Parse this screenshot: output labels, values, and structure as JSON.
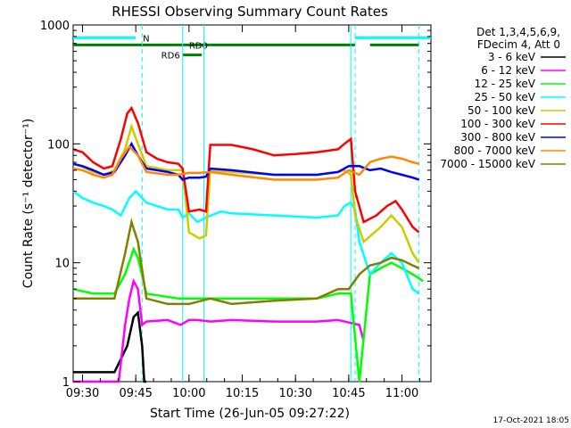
{
  "chart_data": {
    "type": "line",
    "title": "RHESSI Observing Summary Count Rates",
    "xlabel": "Start Time (26-Jun-05 09:27:22)",
    "ylabel": "Count Rate (s⁻¹ detector⁻¹)",
    "yscale": "log",
    "ylim": [
      1,
      1000
    ],
    "y_tick_labels": [
      "1",
      "10",
      "100",
      "1000"
    ],
    "x_range_hours": [
      9.456,
      11.136
    ],
    "x_tick_labels": [
      "09:30",
      "09:45",
      "10:00",
      "10:15",
      "10:30",
      "10:45",
      "11:00"
    ],
    "x_ticks": [
      {
        "t": "09:30",
        "h": 9.5
      },
      {
        "t": "09:45",
        "h": 9.75
      },
      {
        "t": "10:00",
        "h": 10.0
      },
      {
        "t": "10:15",
        "h": 10.25
      },
      {
        "t": "10:30",
        "h": 10.5
      },
      {
        "t": "10:45",
        "h": 10.75
      },
      {
        "t": "11:00",
        "h": 11.0
      }
    ],
    "grid": false,
    "legend_position": "right",
    "legend_header": [
      "Det 1,3,4,5,6,9,",
      "FDecim 4, Att 0"
    ],
    "series": [
      {
        "name": "3 - 6 keV",
        "color": "#000000",
        "points": [
          [
            9.456,
            1.2
          ],
          [
            9.65,
            1.2
          ],
          [
            9.71,
            2
          ],
          [
            9.74,
            3.5
          ],
          [
            9.76,
            3.8
          ],
          [
            9.78,
            2
          ],
          [
            9.79,
            1
          ],
          [
            9.8,
            1
          ]
        ]
      },
      {
        "name": "6 - 12 keV",
        "color": "#ff00ff",
        "points": [
          [
            9.456,
            1
          ],
          [
            9.67,
            1
          ],
          [
            9.7,
            3
          ],
          [
            9.72,
            5
          ],
          [
            9.74,
            7
          ],
          [
            9.76,
            6
          ],
          [
            9.78,
            3
          ],
          [
            9.8,
            3.2
          ],
          [
            9.9,
            3.3
          ],
          [
            9.96,
            3.0
          ],
          [
            10.0,
            3.3
          ],
          [
            10.04,
            3.3
          ],
          [
            10.1,
            3.2
          ],
          [
            10.2,
            3.3
          ],
          [
            10.4,
            3.2
          ],
          [
            10.6,
            3.2
          ],
          [
            10.7,
            3.3
          ],
          [
            10.8,
            3.0
          ],
          [
            10.82,
            2.2
          ]
        ]
      },
      {
        "name": "12 - 25 keV",
        "color": "#00ff00",
        "points": [
          [
            9.456,
            6
          ],
          [
            9.55,
            5.5
          ],
          [
            9.65,
            5.5
          ],
          [
            9.7,
            8
          ],
          [
            9.74,
            13
          ],
          [
            9.76,
            11
          ],
          [
            9.8,
            5.5
          ],
          [
            9.95,
            5
          ],
          [
            10.0,
            5
          ],
          [
            10.08,
            5
          ],
          [
            10.2,
            5
          ],
          [
            10.4,
            5
          ],
          [
            10.6,
            5
          ],
          [
            10.7,
            5.5
          ],
          [
            10.76,
            5.5
          ],
          [
            10.8,
            1
          ],
          [
            10.85,
            8
          ],
          [
            10.9,
            9
          ],
          [
            10.95,
            10
          ],
          [
            11.0,
            9
          ],
          [
            11.05,
            8
          ],
          [
            11.1,
            7
          ]
        ]
      },
      {
        "name": "25 - 50 keV",
        "color": "#00ffff",
        "points": [
          [
            9.456,
            40
          ],
          [
            9.5,
            35
          ],
          [
            9.55,
            32
          ],
          [
            9.6,
            30
          ],
          [
            9.64,
            28
          ],
          [
            9.68,
            25
          ],
          [
            9.72,
            35
          ],
          [
            9.75,
            40
          ],
          [
            9.8,
            32
          ],
          [
            9.85,
            30
          ],
          [
            9.9,
            28
          ],
          [
            9.95,
            28
          ],
          [
            9.97,
            24
          ],
          [
            10.0,
            26
          ],
          [
            10.04,
            22
          ],
          [
            10.08,
            24
          ],
          [
            10.15,
            27
          ],
          [
            10.2,
            26
          ],
          [
            10.4,
            25
          ],
          [
            10.6,
            24
          ],
          [
            10.7,
            25
          ],
          [
            10.73,
            30
          ],
          [
            10.76,
            32
          ],
          [
            10.78,
            28
          ],
          [
            10.8,
            15
          ],
          [
            10.85,
            8
          ],
          [
            10.9,
            10
          ],
          [
            10.95,
            12
          ],
          [
            11.0,
            10
          ],
          [
            11.05,
            6
          ],
          [
            11.08,
            5.5
          ]
        ]
      },
      {
        "name": "50 - 100 keV",
        "color": "#cccc00",
        "points": [
          [
            9.456,
            68
          ],
          [
            9.5,
            64
          ],
          [
            9.55,
            58
          ],
          [
            9.6,
            55
          ],
          [
            9.65,
            60
          ],
          [
            9.7,
            90
          ],
          [
            9.73,
            140
          ],
          [
            9.76,
            100
          ],
          [
            9.8,
            65
          ],
          [
            9.9,
            60
          ],
          [
            9.97,
            60
          ],
          [
            10.0,
            18
          ],
          [
            10.05,
            16
          ],
          [
            10.08,
            17
          ],
          [
            10.1,
            60
          ],
          [
            10.2,
            58
          ],
          [
            10.4,
            55
          ],
          [
            10.6,
            55
          ],
          [
            10.7,
            58
          ],
          [
            10.73,
            60
          ],
          [
            10.76,
            55
          ],
          [
            10.78,
            25
          ],
          [
            10.82,
            15
          ],
          [
            10.9,
            20
          ],
          [
            10.95,
            25
          ],
          [
            11.0,
            20
          ],
          [
            11.05,
            12
          ],
          [
            11.08,
            10
          ]
        ]
      },
      {
        "name": "100 - 300 keV",
        "color": "#ff0000",
        "points": [
          [
            9.456,
            90
          ],
          [
            9.5,
            85
          ],
          [
            9.55,
            70
          ],
          [
            9.6,
            62
          ],
          [
            9.64,
            65
          ],
          [
            9.68,
            110
          ],
          [
            9.71,
            180
          ],
          [
            9.73,
            200
          ],
          [
            9.76,
            150
          ],
          [
            9.8,
            85
          ],
          [
            9.85,
            75
          ],
          [
            9.9,
            70
          ],
          [
            9.95,
            68
          ],
          [
            9.97,
            62
          ],
          [
            10.0,
            27
          ],
          [
            10.05,
            28
          ],
          [
            10.08,
            27
          ],
          [
            10.1,
            98
          ],
          [
            10.2,
            98
          ],
          [
            10.3,
            90
          ],
          [
            10.4,
            80
          ],
          [
            10.5,
            82
          ],
          [
            10.6,
            85
          ],
          [
            10.7,
            90
          ],
          [
            10.73,
            100
          ],
          [
            10.76,
            110
          ],
          [
            10.78,
            40
          ],
          [
            10.82,
            22
          ],
          [
            10.88,
            25
          ],
          [
            10.93,
            30
          ],
          [
            10.97,
            33
          ],
          [
            11.0,
            28
          ],
          [
            11.05,
            20
          ],
          [
            11.08,
            18
          ]
        ]
      },
      {
        "name": "300 - 800 keV",
        "color": "#0000ff",
        "points": [
          [
            9.456,
            68
          ],
          [
            9.5,
            65
          ],
          [
            9.55,
            60
          ],
          [
            9.6,
            55
          ],
          [
            9.65,
            58
          ],
          [
            9.7,
            80
          ],
          [
            9.73,
            100
          ],
          [
            9.76,
            80
          ],
          [
            9.8,
            62
          ],
          [
            9.85,
            60
          ],
          [
            9.9,
            58
          ],
          [
            9.95,
            55
          ],
          [
            9.97,
            50
          ],
          [
            10.0,
            52
          ],
          [
            10.05,
            52
          ],
          [
            10.08,
            53
          ],
          [
            10.1,
            62
          ],
          [
            10.2,
            60
          ],
          [
            10.4,
            55
          ],
          [
            10.6,
            55
          ],
          [
            10.7,
            58
          ],
          [
            10.75,
            65
          ],
          [
            10.8,
            65
          ],
          [
            10.85,
            60
          ],
          [
            10.9,
            62
          ],
          [
            10.95,
            58
          ],
          [
            11.0,
            55
          ],
          [
            11.05,
            52
          ],
          [
            11.08,
            50
          ]
        ]
      },
      {
        "name": "800 - 7000 keV",
        "color": "#ff8800",
        "points": [
          [
            9.456,
            62
          ],
          [
            9.5,
            60
          ],
          [
            9.55,
            55
          ],
          [
            9.6,
            52
          ],
          [
            9.64,
            55
          ],
          [
            9.68,
            75
          ],
          [
            9.72,
            95
          ],
          [
            9.76,
            80
          ],
          [
            9.8,
            58
          ],
          [
            9.9,
            55
          ],
          [
            9.95,
            55
          ],
          [
            10.0,
            57
          ],
          [
            10.05,
            57
          ],
          [
            10.1,
            58
          ],
          [
            10.2,
            55
          ],
          [
            10.4,
            50
          ],
          [
            10.6,
            50
          ],
          [
            10.7,
            52
          ],
          [
            10.75,
            60
          ],
          [
            10.8,
            55
          ],
          [
            10.85,
            70
          ],
          [
            10.9,
            75
          ],
          [
            10.95,
            78
          ],
          [
            11.0,
            75
          ],
          [
            11.05,
            70
          ],
          [
            11.08,
            68
          ]
        ]
      },
      {
        "name": "7000 - 15000 keV",
        "color": "#808000",
        "points": [
          [
            9.456,
            5
          ],
          [
            9.55,
            5
          ],
          [
            9.65,
            5
          ],
          [
            9.7,
            12
          ],
          [
            9.73,
            22
          ],
          [
            9.76,
            15
          ],
          [
            9.8,
            5
          ],
          [
            9.9,
            4.5
          ],
          [
            9.95,
            4.5
          ],
          [
            10.0,
            4.5
          ],
          [
            10.1,
            5
          ],
          [
            10.2,
            4.5
          ],
          [
            10.4,
            4.8
          ],
          [
            10.6,
            5
          ],
          [
            10.7,
            6
          ],
          [
            10.75,
            6
          ],
          [
            10.8,
            8
          ],
          [
            10.85,
            9.5
          ],
          [
            10.9,
            10
          ],
          [
            10.95,
            11
          ],
          [
            11.0,
            10.5
          ],
          [
            11.05,
            9.5
          ],
          [
            11.08,
            9
          ]
        ]
      }
    ],
    "state_bars": [
      {
        "label": "N",
        "color": "#00ffff",
        "level": 780,
        "segments": [
          [
            9.456,
            9.75
          ],
          [
            10.78,
            11.136
          ]
        ]
      },
      {
        "label": "RD0",
        "color": "#008000",
        "level": 680,
        "segments": [
          [
            9.456,
            10.1
          ],
          [
            10.1,
            10.78
          ],
          [
            10.85,
            11.08
          ]
        ]
      },
      {
        "label": "RD6",
        "color": "#008000",
        "level": 560,
        "segments": [
          [
            9.97,
            10.06
          ]
        ]
      }
    ],
    "vertical_markers": [
      {
        "h": 9.78,
        "style": "dashed",
        "color": "#00ffff"
      },
      {
        "h": 9.97,
        "style": "solid",
        "color": "#00ffff"
      },
      {
        "h": 10.07,
        "style": "solid",
        "color": "#00ffff"
      },
      {
        "h": 10.76,
        "style": "solid",
        "color": "#00ffff"
      },
      {
        "h": 10.78,
        "style": "dashed",
        "color": "#00ffff"
      },
      {
        "h": 11.08,
        "style": "dashed",
        "color": "#00ffff"
      }
    ]
  },
  "footer": {
    "timestamp": "17-Oct-2021 18:05"
  }
}
